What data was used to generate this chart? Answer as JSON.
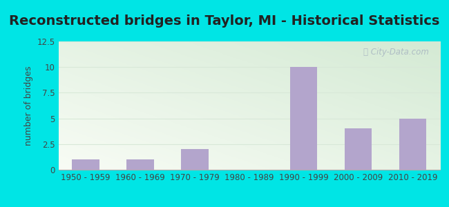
{
  "title": "Reconstructed bridges in Taylor, MI - Historical Statistics",
  "categories": [
    "1950 - 1959",
    "1960 - 1969",
    "1970 - 1979",
    "1980 - 1989",
    "1990 - 1999",
    "2000 - 2009",
    "2010 - 2019"
  ],
  "values": [
    1,
    1,
    2,
    0,
    10,
    4,
    5
  ],
  "bar_color": "#b3a5cc",
  "background_outer": "#00e5e5",
  "background_plot_topleft": "#d4ead4",
  "background_plot_bottomright": "#f8fcf5",
  "ylabel": "number of bridges",
  "ylim": [
    0,
    12.5
  ],
  "yticks": [
    0,
    2.5,
    5,
    7.5,
    10,
    12.5
  ],
  "title_fontsize": 14,
  "ylabel_fontsize": 9,
  "tick_fontsize": 8.5,
  "watermark": "City-Data.com",
  "grid_color": "#d8e8d8",
  "title_color": "#222222"
}
